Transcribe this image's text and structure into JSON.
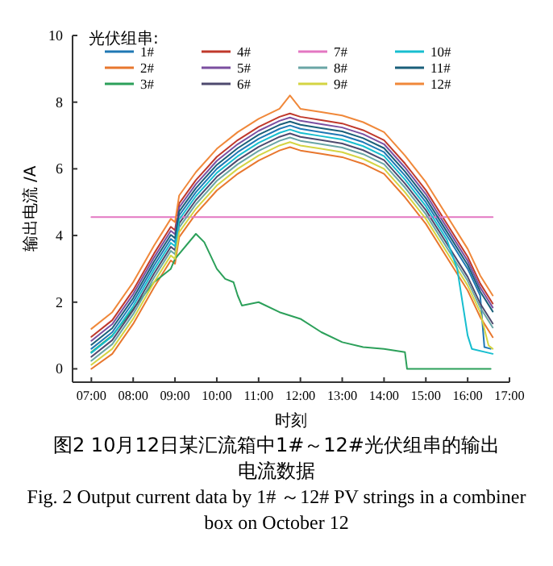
{
  "chart_data": {
    "type": "line",
    "title": "图2 10月12日某汇流箱中1#～12#光伏组串的输出电流数据",
    "subtitle": "Fig. 2 Output current data by 1# ～12# PV strings in a combiner box on October 12",
    "xlabel": "时刻",
    "ylabel": "输出电流 /A",
    "legend_title": "光伏组串:",
    "legend": "top left",
    "line_style": "solid",
    "marker": "none",
    "x": [
      7,
      7.5,
      8,
      8.5,
      8.9,
      9,
      9.1,
      9.5,
      10,
      10.5,
      11,
      11.5,
      11.75,
      12,
      12.5,
      13,
      13.5,
      14,
      14.5,
      15,
      15.5,
      16,
      16.3,
      16.6
    ],
    "xlim": [
      6.55,
      17
    ],
    "xticks": [
      {
        "value": 7,
        "label": "07:00"
      },
      {
        "value": 8,
        "label": "08:00"
      },
      {
        "value": 9,
        "label": "09:00"
      },
      {
        "value": 10,
        "label": "10:00"
      },
      {
        "value": 11,
        "label": "11:00"
      },
      {
        "value": 12,
        "label": "12:00"
      },
      {
        "value": 13,
        "label": "13:00"
      },
      {
        "value": 14,
        "label": "14:00"
      },
      {
        "value": 15,
        "label": "15:00"
      },
      {
        "value": 16,
        "label": "16:00"
      },
      {
        "value": 17,
        "label": "17:00"
      }
    ],
    "ylim": [
      -0.4,
      10
    ],
    "yticks": [
      0,
      2,
      4,
      6,
      8,
      10
    ],
    "series": [
      {
        "name": "1#",
        "color": "#1f78b4",
        "x": [
          7,
          7.5,
          8,
          8.5,
          8.9,
          9,
          9.1,
          9.5,
          10,
          10.5,
          11,
          11.5,
          11.75,
          12,
          12.5,
          13,
          13.5,
          14,
          14.5,
          15,
          15.5,
          16,
          16.3,
          16.4,
          16.55
        ],
        "values": [
          0.6,
          1.1,
          2.0,
          3.1,
          3.9,
          3.8,
          4.6,
          5.3,
          6.0,
          6.5,
          6.9,
          7.2,
          7.3,
          7.2,
          7.1,
          7.0,
          6.8,
          6.5,
          5.8,
          5.0,
          4.0,
          3.0,
          2.2,
          0.65,
          0.6
        ]
      },
      {
        "name": "2#",
        "color": "#e8772e",
        "values": [
          0.0,
          0.45,
          1.35,
          2.45,
          3.25,
          3.15,
          3.95,
          4.65,
          5.35,
          5.85,
          6.25,
          6.55,
          6.65,
          6.55,
          6.45,
          6.35,
          6.15,
          5.85,
          5.15,
          4.35,
          3.35,
          2.35,
          1.55,
          0.95
        ]
      },
      {
        "name": "3#",
        "color": "#2ca05a",
        "x": [
          7,
          7.5,
          8,
          8.5,
          8.9,
          9,
          9.5,
          9.7,
          10,
          10.2,
          10.4,
          10.5,
          10.6,
          11,
          11.5,
          12,
          12.5,
          13,
          13.5,
          14,
          14.5,
          14.55,
          16.55
        ],
        "values": [
          0.5,
          1.0,
          1.8,
          2.6,
          3.0,
          3.3,
          4.05,
          3.8,
          3.0,
          2.7,
          2.6,
          2.2,
          1.9,
          2.0,
          1.7,
          1.5,
          1.1,
          0.8,
          0.65,
          0.6,
          0.5,
          0,
          0
        ]
      },
      {
        "name": "4#",
        "color": "#c0392b",
        "values": [
          0.96,
          1.46,
          2.36,
          3.46,
          4.26,
          4.16,
          4.96,
          5.66,
          6.36,
          6.86,
          7.26,
          7.56,
          7.66,
          7.56,
          7.46,
          7.36,
          7.16,
          6.86,
          6.16,
          5.36,
          4.36,
          3.36,
          2.56,
          1.96
        ]
      },
      {
        "name": "5#",
        "color": "#7b4fa0",
        "values": [
          0.84,
          1.34,
          2.24,
          3.34,
          4.14,
          4.04,
          4.84,
          5.54,
          6.24,
          6.74,
          7.14,
          7.44,
          7.54,
          7.44,
          7.34,
          7.24,
          7.04,
          6.74,
          6.04,
          5.24,
          4.24,
          3.24,
          2.44,
          1.84
        ]
      },
      {
        "name": "6#",
        "color": "#4e4a6e",
        "values": [
          0.36,
          0.86,
          1.76,
          2.86,
          3.66,
          3.56,
          4.36,
          5.06,
          5.76,
          6.26,
          6.66,
          6.96,
          7.06,
          6.96,
          6.86,
          6.76,
          6.56,
          6.26,
          5.56,
          4.76,
          3.76,
          2.76,
          1.96,
          1.36
        ]
      },
      {
        "name": "7#",
        "color": "#e377c2",
        "x": [
          7,
          16.6
        ],
        "values": [
          4.55,
          4.55
        ]
      },
      {
        "name": "8#",
        "color": "#6aa5a5",
        "values": [
          0.24,
          0.74,
          1.64,
          2.74,
          3.54,
          3.44,
          4.24,
          4.94,
          5.64,
          6.14,
          6.54,
          6.84,
          6.94,
          6.84,
          6.74,
          6.64,
          6.44,
          6.14,
          5.44,
          4.64,
          3.64,
          2.64,
          1.84,
          1.24
        ]
      },
      {
        "name": "9#",
        "color": "#d4d443",
        "x": [
          7,
          7.5,
          8,
          8.5,
          8.9,
          9,
          9.1,
          9.5,
          10,
          10.5,
          11,
          11.5,
          11.75,
          12,
          12.5,
          13,
          13.5,
          14,
          14.5,
          15,
          15.5,
          16,
          16.3,
          16.5,
          16.6
        ],
        "values": [
          0.12,
          0.6,
          1.5,
          2.6,
          3.4,
          3.3,
          4.1,
          4.8,
          5.5,
          6.0,
          6.4,
          6.7,
          6.8,
          6.7,
          6.6,
          6.5,
          6.3,
          6.0,
          5.3,
          4.5,
          3.5,
          2.5,
          1.7,
          0.7,
          0.6
        ]
      },
      {
        "name": "10#",
        "color": "#17becf",
        "x": [
          7,
          7.5,
          8,
          8.5,
          8.9,
          9,
          9.1,
          9.5,
          10,
          10.5,
          11,
          11.5,
          11.75,
          12,
          12.5,
          13,
          13.5,
          14,
          14.5,
          15,
          15.5,
          15.75,
          16,
          16.1,
          16.6
        ],
        "values": [
          0.48,
          0.98,
          1.88,
          2.98,
          3.78,
          3.68,
          4.48,
          5.18,
          5.88,
          6.38,
          6.78,
          7.08,
          7.18,
          7.08,
          6.98,
          6.88,
          6.68,
          6.38,
          5.68,
          4.88,
          3.88,
          3.0,
          1.0,
          0.6,
          0.45
        ]
      },
      {
        "name": "11#",
        "color": "#1a5f7a",
        "values": [
          0.72,
          1.22,
          2.12,
          3.22,
          4.02,
          3.92,
          4.72,
          5.42,
          6.12,
          6.62,
          7.02,
          7.32,
          7.42,
          7.32,
          7.22,
          7.12,
          6.92,
          6.62,
          5.92,
          5.12,
          4.12,
          3.12,
          2.32,
          1.72
        ]
      },
      {
        "name": "12#",
        "color": "#f0883a",
        "values": [
          1.2,
          1.7,
          2.6,
          3.7,
          4.5,
          4.4,
          5.2,
          5.9,
          6.6,
          7.1,
          7.5,
          7.8,
          8.2,
          7.8,
          7.7,
          7.6,
          7.4,
          7.1,
          6.4,
          5.6,
          4.6,
          3.6,
          2.8,
          2.2
        ]
      }
    ]
  }
}
